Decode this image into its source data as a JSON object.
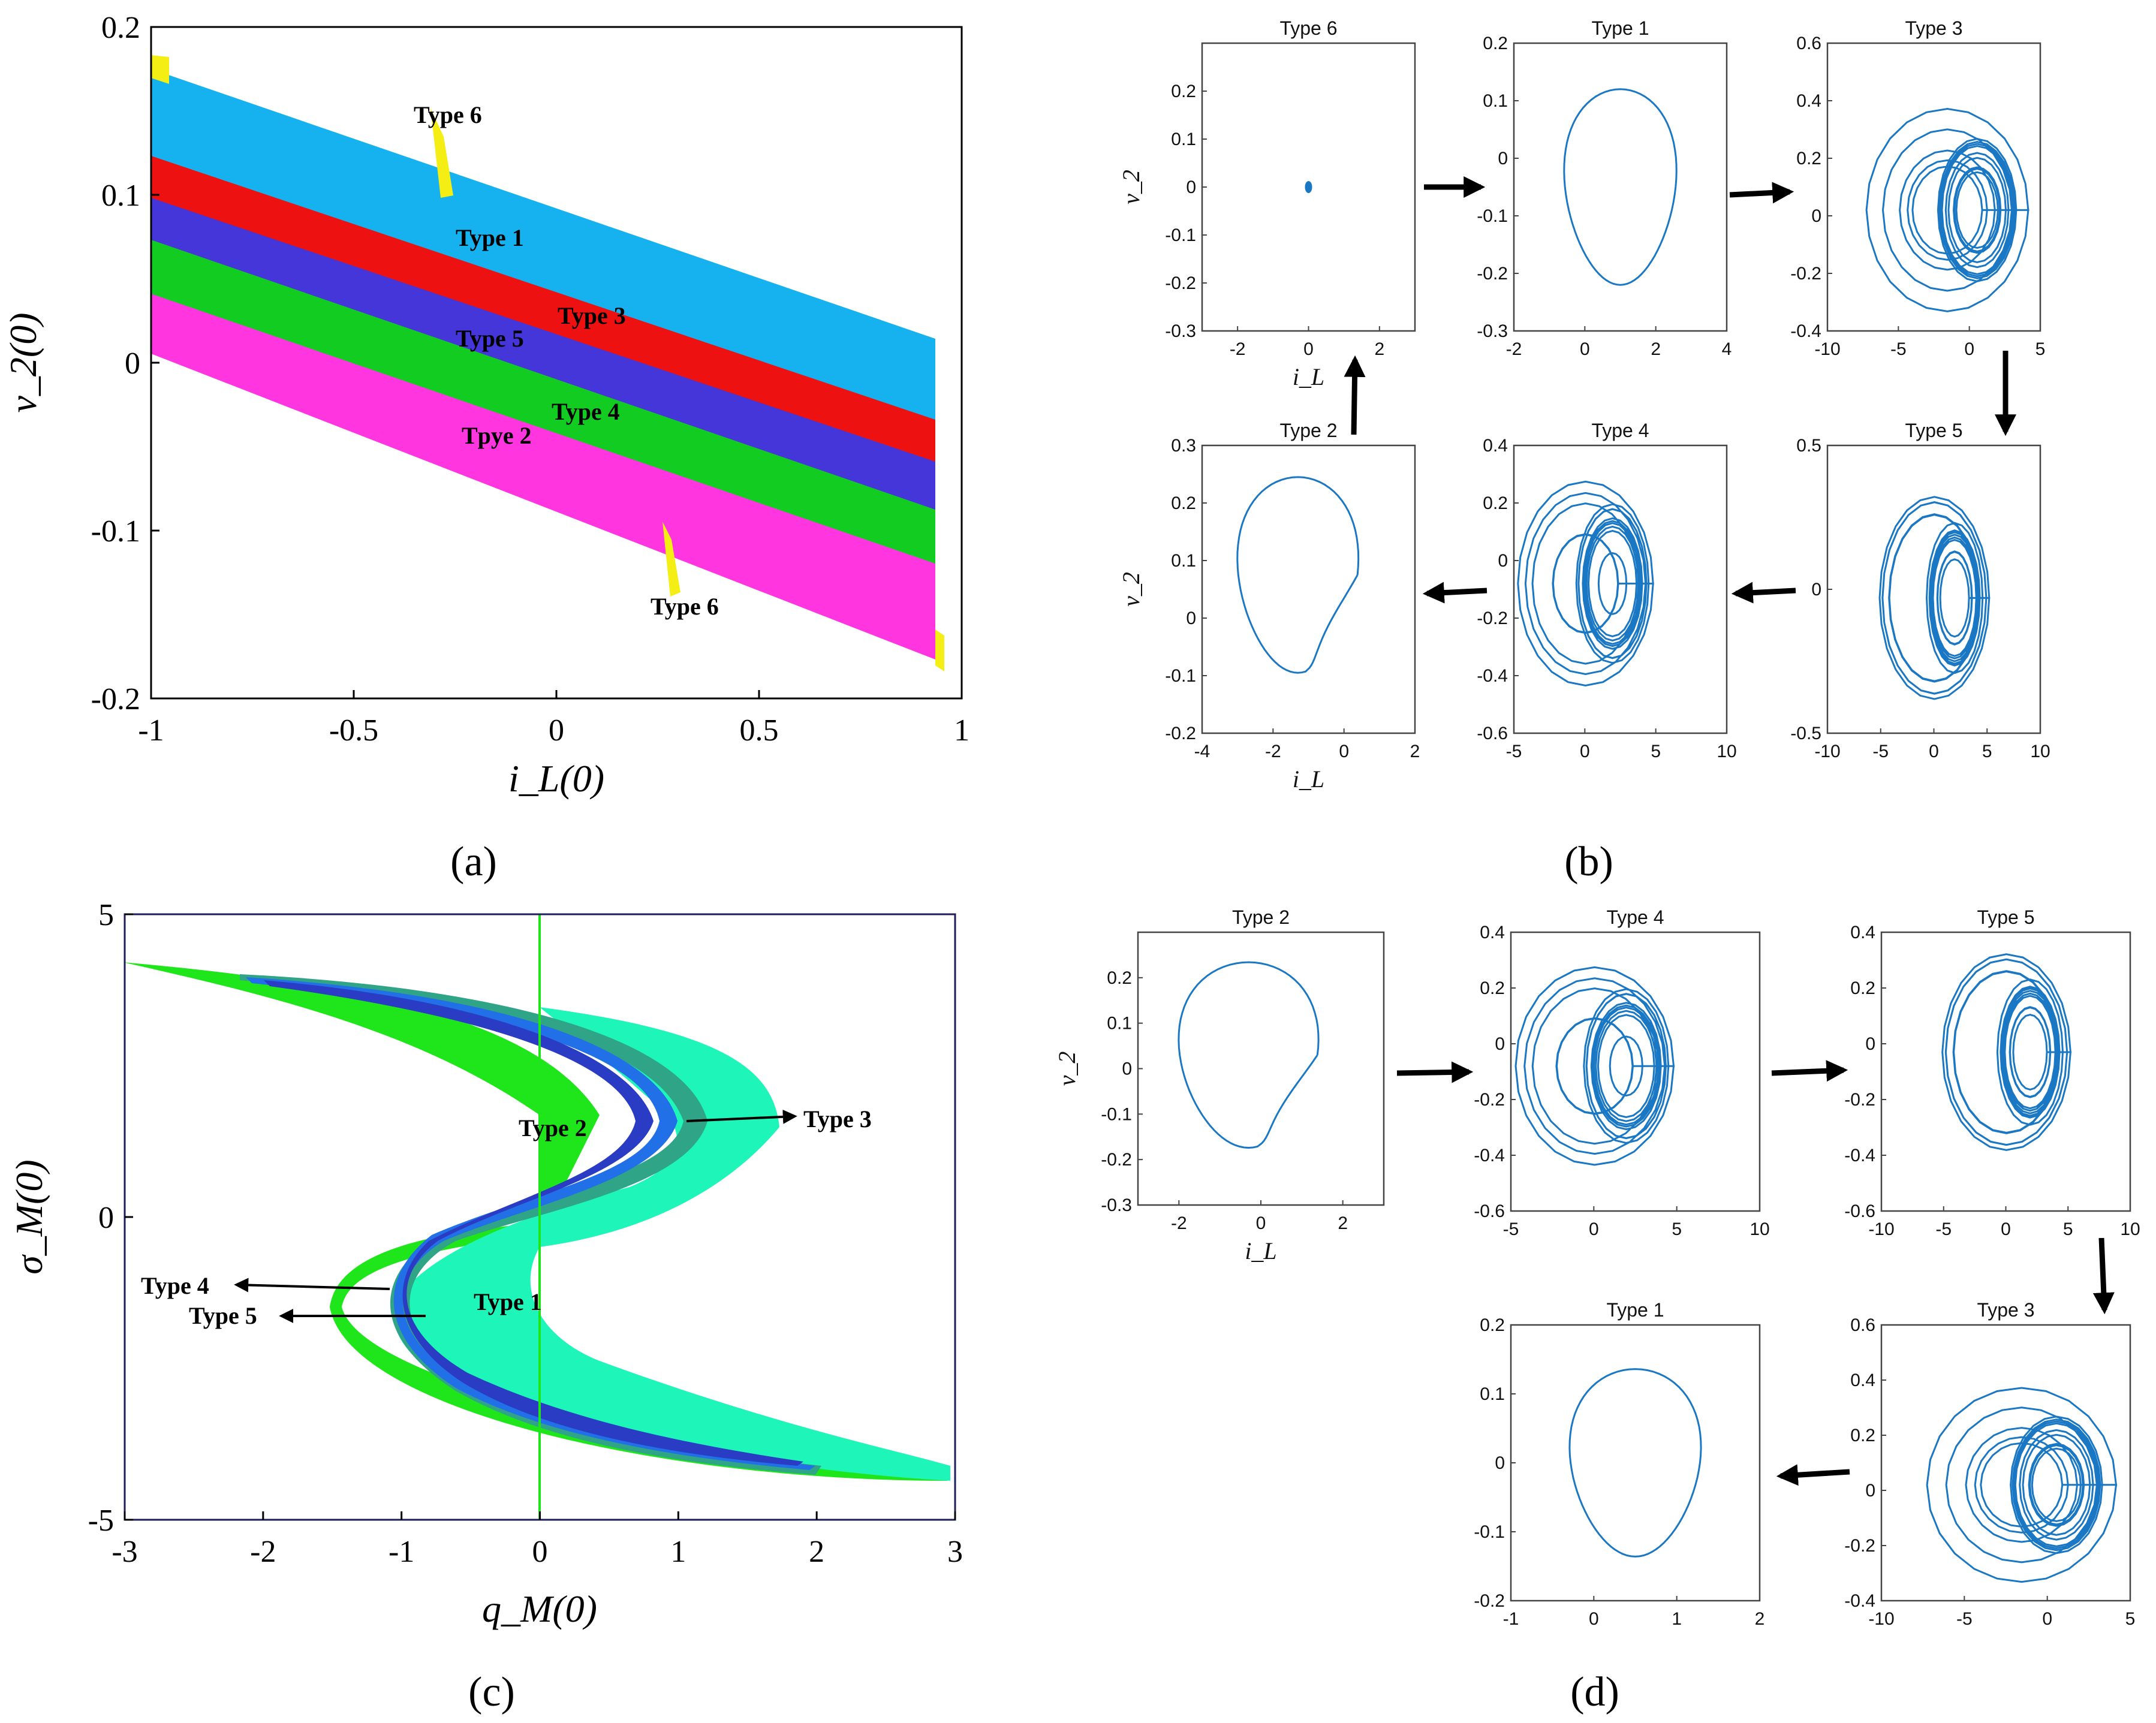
{
  "panel_labels": [
    "(a)",
    "(b)",
    "(c)",
    "(d)"
  ],
  "chart_data": [
    {
      "id": "a",
      "type": "heatmap",
      "title": "",
      "xlabel": "i_L(0)",
      "ylabel": "v_2(0)",
      "xlim": [
        -1,
        1
      ],
      "ylim": [
        -0.2,
        0.2
      ],
      "xticks": [
        "-1",
        "-0.5",
        "0",
        "0.5",
        "1"
      ],
      "yticks": [
        "0.2",
        "0.1",
        "0",
        "-0.1",
        "-0.2"
      ],
      "regions": [
        {
          "name": "Type 1",
          "color": "#16b2f0"
        },
        {
          "name": "Type 3",
          "color": "#ee1111"
        },
        {
          "name": "Type 5",
          "color": "#4436d8"
        },
        {
          "name": "Type 4",
          "color": "#12cc22"
        },
        {
          "name": "Tpye 2",
          "color": "#ff35e0"
        },
        {
          "name": "Type 6",
          "color": "#f4ee14"
        }
      ],
      "annotations": [
        "Type 6",
        "Type 1",
        "Type 3",
        "Type 5",
        "Type 4",
        "Tpye 2",
        "Type 6"
      ]
    },
    {
      "id": "b",
      "type": "line",
      "description_order": [
        "Type 6",
        "Type 1",
        "Type 3",
        "Type 5",
        "Type 4",
        "Type 2"
      ],
      "subplots": [
        {
          "title": "Type 6",
          "xlim": [
            -3,
            3
          ],
          "ylim": [
            -0.3,
            0.3
          ],
          "xticks": [
            "-2",
            "0",
            "2"
          ],
          "yticks": [
            "0.2",
            "0.1",
            "0",
            "-0.1",
            "-0.2",
            "-0.3"
          ],
          "xlabel": "i_L",
          "ylabel": "v_2"
        },
        {
          "title": "Type 1",
          "xlim": [
            -2,
            4
          ],
          "ylim": [
            -0.3,
            0.2
          ],
          "xticks": [
            "-2",
            "0",
            "2",
            "4"
          ],
          "yticks": [
            "0.2",
            "0.1",
            "0",
            "-0.1",
            "-0.2",
            "-0.3"
          ]
        },
        {
          "title": "Type 3",
          "xlim": [
            -10,
            5
          ],
          "ylim": [
            -0.4,
            0.6
          ],
          "xticks": [
            "-10",
            "-5",
            "0",
            "5"
          ],
          "yticks": [
            "0.6",
            "0.4",
            "0.2",
            "0",
            "-0.2",
            "-0.4"
          ]
        },
        {
          "title": "Type 2",
          "xlim": [
            -4,
            2
          ],
          "ylim": [
            -0.2,
            0.3
          ],
          "xticks": [
            "-4",
            "-2",
            "0",
            "2"
          ],
          "yticks": [
            "0.3",
            "0.2",
            "0.1",
            "0",
            "-0.1",
            "-0.2"
          ],
          "xlabel": "i_L",
          "ylabel": "v_2"
        },
        {
          "title": "Type 4",
          "xlim": [
            -5,
            10
          ],
          "ylim": [
            -0.6,
            0.4
          ],
          "xticks": [
            "-5",
            "0",
            "5",
            "10"
          ],
          "yticks": [
            "0.4",
            "0.2",
            "0",
            "-0.2",
            "-0.4",
            "-0.6"
          ]
        },
        {
          "title": "Type 5",
          "xlim": [
            -10,
            10
          ],
          "ylim": [
            -0.5,
            0.5
          ],
          "xticks": [
            "-10",
            "-5",
            "0",
            "5",
            "10"
          ],
          "yticks": [
            "0.5",
            "0",
            "-0.5"
          ]
        }
      ]
    },
    {
      "id": "c",
      "type": "heatmap",
      "title": "",
      "xlabel": "q_M(0)",
      "ylabel": "σ_M(0)",
      "xlim": [
        -3,
        3
      ],
      "ylim": [
        -5,
        5
      ],
      "xticks": [
        "-3",
        "-2",
        "-1",
        "0",
        "1",
        "2",
        "3"
      ],
      "yticks": [
        "5",
        "0",
        "-5"
      ],
      "regions": [
        {
          "name": "Type 2",
          "color": "#1fe61a"
        },
        {
          "name": "Type 1",
          "color": "#1ef5b8"
        },
        {
          "name": "Type 3",
          "color": "#2fa486"
        },
        {
          "name": "Type 4",
          "color": "#2270e8"
        },
        {
          "name": "Type 5",
          "color": "#2a3cc4"
        }
      ],
      "annotations": [
        "Type 2",
        "Type 3",
        "Type 4",
        "Type 5",
        "Type 1"
      ]
    },
    {
      "id": "d",
      "type": "line",
      "subplots": [
        {
          "title": "Type 2",
          "xlim": [
            -3,
            3
          ],
          "ylim": [
            -0.3,
            0.3
          ],
          "xticks": [
            "-2",
            "0",
            "2"
          ],
          "yticks": [
            "0.2",
            "0.1",
            "0",
            "-0.1",
            "-0.2",
            "-0.3"
          ],
          "xlabel": "i_L",
          "ylabel": "v_2"
        },
        {
          "title": "Type 4",
          "xlim": [
            -5,
            10
          ],
          "ylim": [
            -0.6,
            0.4
          ],
          "xticks": [
            "-5",
            "0",
            "5",
            "10"
          ],
          "yticks": [
            "0.4",
            "0.2",
            "0",
            "-0.2",
            "-0.4",
            "-0.6"
          ]
        },
        {
          "title": "Type 5",
          "xlim": [
            -10,
            10
          ],
          "ylim": [
            -0.6,
            0.4
          ],
          "xticks": [
            "-10",
            "-5",
            "0",
            "5",
            "10"
          ],
          "yticks": [
            "0.4",
            "0.2",
            "0",
            "-0.2",
            "-0.4",
            "-0.6"
          ]
        },
        {
          "title": "Type 1",
          "xlim": [
            -1,
            2
          ],
          "ylim": [
            -0.2,
            0.2
          ],
          "xticks": [
            "-1",
            "0",
            "1",
            "2"
          ],
          "yticks": [
            "0.2",
            "0.1",
            "0",
            "-0.1",
            "-0.2"
          ]
        },
        {
          "title": "Type 3",
          "xlim": [
            -10,
            5
          ],
          "ylim": [
            -0.4,
            0.6
          ],
          "xticks": [
            "-10",
            "-5",
            "0",
            "5"
          ],
          "yticks": [
            "0.6",
            "0.4",
            "0.2",
            "0",
            "-0.2",
            "-0.4"
          ]
        }
      ]
    }
  ]
}
